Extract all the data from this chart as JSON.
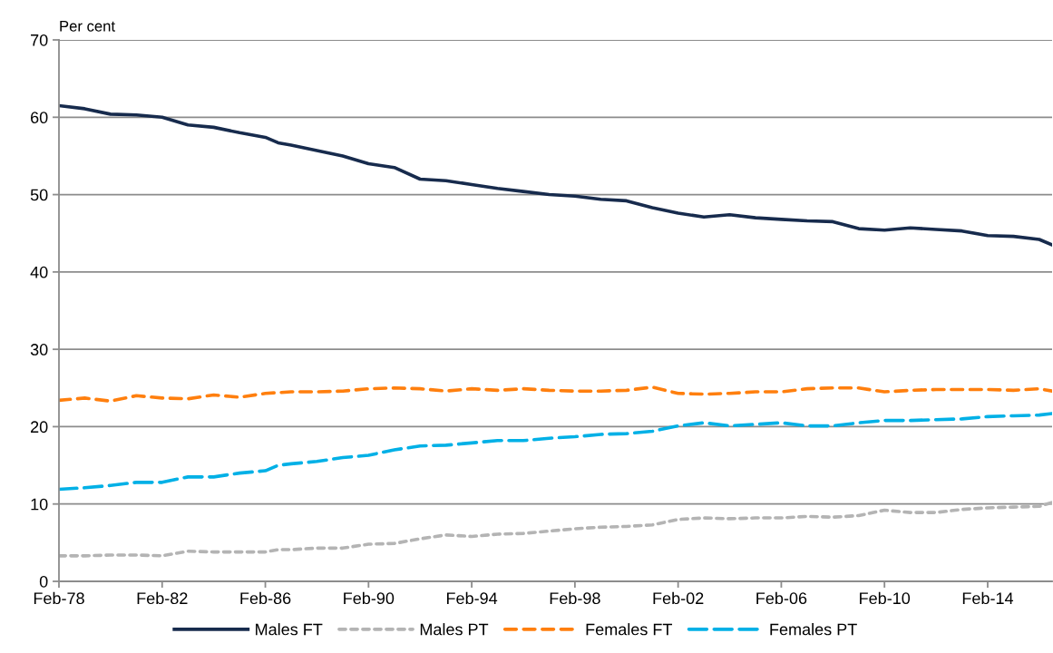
{
  "chart_data": {
    "type": "line",
    "ylabel": "Per cent",
    "x": [
      "1978-02",
      "1979-02",
      "1980-02",
      "1981-02",
      "1982-02",
      "1983-02",
      "1984-02",
      "1985-02",
      "1986-02",
      "1986-08",
      "1987-02",
      "1988-02",
      "1989-02",
      "1990-02",
      "1991-02",
      "1992-02",
      "1993-02",
      "1994-02",
      "1995-02",
      "1996-02",
      "1997-02",
      "1998-02",
      "1999-02",
      "2000-02",
      "2001-02",
      "2002-02",
      "2003-02",
      "2004-02",
      "2005-02",
      "2006-02",
      "2007-02",
      "2008-02",
      "2009-02",
      "2010-02",
      "2011-02",
      "2012-02",
      "2013-02",
      "2014-02",
      "2015-02",
      "2016-02",
      "2016-08"
    ],
    "series": [
      {
        "name": "Males FT",
        "color": "#172b4d",
        "line_style": "solid",
        "values": [
          61.5,
          61.1,
          60.4,
          60.3,
          60.0,
          59.0,
          58.7,
          58.0,
          57.4,
          56.7,
          56.4,
          55.7,
          55.0,
          54.0,
          53.5,
          52.0,
          51.8,
          51.3,
          50.8,
          50.4,
          50.0,
          49.8,
          49.4,
          49.2,
          48.3,
          47.6,
          47.1,
          47.4,
          47.0,
          46.8,
          46.6,
          46.5,
          45.6,
          45.4,
          45.7,
          45.5,
          45.3,
          44.7,
          44.6,
          44.2,
          43.5
        ]
      },
      {
        "name": "Males PT",
        "color": "#b4b4b4",
        "line_style": "dotted",
        "values": [
          3.3,
          3.3,
          3.4,
          3.4,
          3.3,
          3.9,
          3.8,
          3.8,
          3.8,
          4.1,
          4.1,
          4.3,
          4.3,
          4.8,
          4.9,
          5.5,
          6.0,
          5.8,
          6.1,
          6.2,
          6.5,
          6.8,
          7.0,
          7.1,
          7.3,
          8.0,
          8.2,
          8.1,
          8.2,
          8.2,
          8.4,
          8.3,
          8.5,
          9.2,
          8.9,
          8.9,
          9.3,
          9.5,
          9.6,
          9.7,
          10.2
        ]
      },
      {
        "name": "Females FT",
        "color": "#ff7f0e",
        "line_style": "dashed",
        "values": [
          23.4,
          23.7,
          23.3,
          24.0,
          23.7,
          23.6,
          24.1,
          23.8,
          24.3,
          24.4,
          24.5,
          24.5,
          24.6,
          24.9,
          25.0,
          24.9,
          24.6,
          24.9,
          24.7,
          24.9,
          24.7,
          24.6,
          24.6,
          24.7,
          25.1,
          24.3,
          24.2,
          24.3,
          24.5,
          24.5,
          24.9,
          25.0,
          25.0,
          24.5,
          24.7,
          24.8,
          24.8,
          24.8,
          24.7,
          24.9,
          24.6
        ]
      },
      {
        "name": "Females PT",
        "color": "#00b0e6",
        "line_style": "dashed",
        "values": [
          11.9,
          12.1,
          12.4,
          12.8,
          12.8,
          13.5,
          13.5,
          14.0,
          14.3,
          15.0,
          15.2,
          15.5,
          16.0,
          16.3,
          17.0,
          17.5,
          17.6,
          17.9,
          18.2,
          18.2,
          18.5,
          18.7,
          19.0,
          19.1,
          19.4,
          20.1,
          20.5,
          20.1,
          20.3,
          20.5,
          20.1,
          20.1,
          20.5,
          20.8,
          20.8,
          20.9,
          21.0,
          21.3,
          21.4,
          21.5,
          21.7
        ]
      }
    ],
    "xlim": [
      "1978-02",
      "2016-08"
    ],
    "xticks": [
      {
        "value": "1978-02",
        "label": "Feb-78"
      },
      {
        "value": "1982-02",
        "label": "Feb-82"
      },
      {
        "value": "1986-02",
        "label": "Feb-86"
      },
      {
        "value": "1990-02",
        "label": "Feb-90"
      },
      {
        "value": "1994-02",
        "label": "Feb-94"
      },
      {
        "value": "1998-02",
        "label": "Feb-98"
      },
      {
        "value": "2002-02",
        "label": "Feb-02"
      },
      {
        "value": "2006-02",
        "label": "Feb-06"
      },
      {
        "value": "2010-02",
        "label": "Feb-10"
      },
      {
        "value": "2014-02",
        "label": "Feb-14"
      }
    ],
    "ylim": [
      0,
      70
    ],
    "yticks": [
      0,
      10,
      20,
      30,
      40,
      50,
      60,
      70
    ],
    "grid": "y",
    "legend": "bottom",
    "marker": "none"
  }
}
